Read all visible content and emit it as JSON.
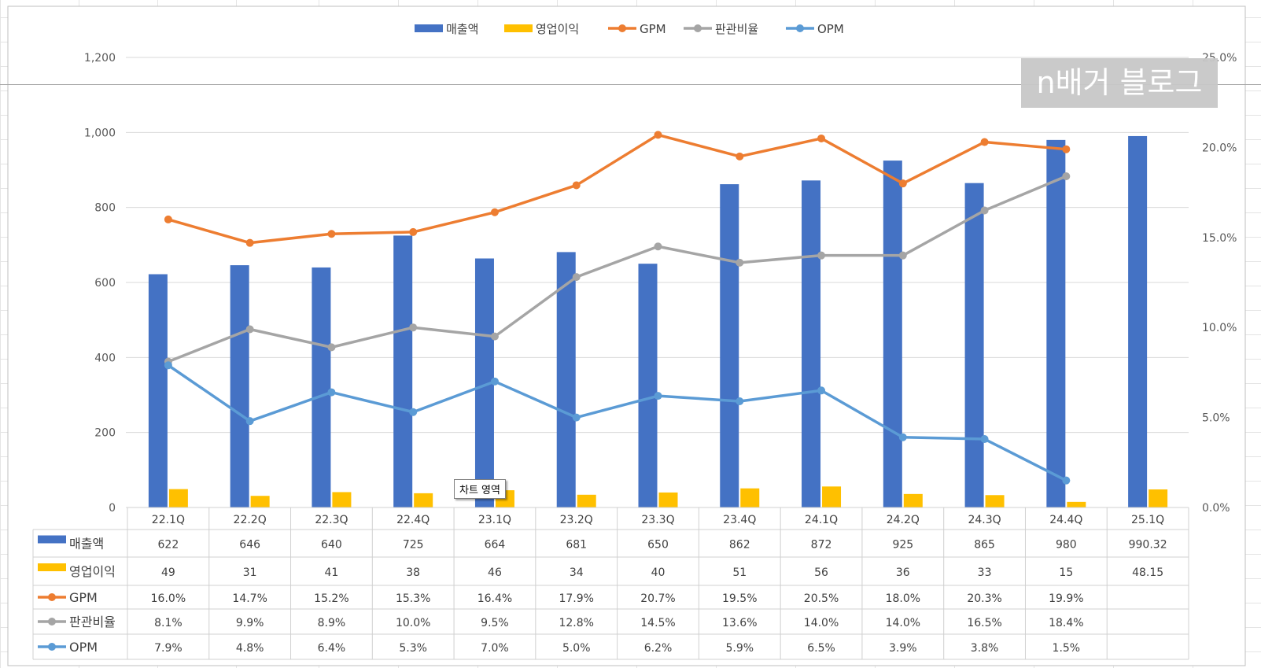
{
  "chart_data": {
    "type": "bar+line",
    "categories": [
      "22.1Q",
      "22.2Q",
      "22.3Q",
      "22.4Q",
      "23.1Q",
      "23.2Q",
      "23.3Q",
      "23.4Q",
      "24.1Q",
      "24.2Q",
      "24.3Q",
      "24.4Q",
      "25.1Q"
    ],
    "bar_series": [
      {
        "name": "매출액",
        "color": "#4472C4",
        "values": [
          622,
          646,
          640,
          725,
          664,
          681,
          650,
          862,
          872,
          925,
          865,
          980,
          990.32
        ],
        "labels": [
          "622",
          "646",
          "640",
          "725",
          "664",
          "681",
          "650",
          "862",
          "872",
          "925",
          "865",
          "980",
          "990.32"
        ]
      },
      {
        "name": "영업이익",
        "color": "#FFC000",
        "values": [
          49,
          31,
          41,
          38,
          46,
          34,
          40,
          51,
          56,
          36,
          33,
          15,
          48.15
        ],
        "labels": [
          "49",
          "31",
          "41",
          "38",
          "46",
          "34",
          "40",
          "51",
          "56",
          "36",
          "33",
          "15",
          "48.15"
        ]
      }
    ],
    "line_series": [
      {
        "name": "GPM",
        "color": "#ED7D31",
        "values": [
          16.0,
          14.7,
          15.2,
          15.3,
          16.4,
          17.9,
          20.7,
          19.5,
          20.5,
          18.0,
          20.3,
          19.9,
          null
        ],
        "labels": [
          "16.0%",
          "14.7%",
          "15.2%",
          "15.3%",
          "16.4%",
          "17.9%",
          "20.7%",
          "19.5%",
          "20.5%",
          "18.0%",
          "20.3%",
          "19.9%",
          ""
        ]
      },
      {
        "name": "판관비율",
        "color": "#A5A5A5",
        "values": [
          8.1,
          9.9,
          8.9,
          10.0,
          9.5,
          12.8,
          14.5,
          13.6,
          14.0,
          14.0,
          16.5,
          18.4,
          null
        ],
        "labels": [
          "8.1%",
          "9.9%",
          "8.9%",
          "10.0%",
          "9.5%",
          "12.8%",
          "14.5%",
          "13.6%",
          "14.0%",
          "14.0%",
          "16.5%",
          "18.4%",
          ""
        ]
      },
      {
        "name": "OPM",
        "color": "#5B9BD5",
        "values": [
          7.9,
          4.8,
          6.4,
          5.3,
          7.0,
          5.0,
          6.2,
          5.9,
          6.5,
          3.9,
          3.8,
          1.5,
          null
        ],
        "labels": [
          "7.9%",
          "4.8%",
          "6.4%",
          "5.3%",
          "7.0%",
          "5.0%",
          "6.2%",
          "5.9%",
          "6.5%",
          "3.9%",
          "3.8%",
          "1.5%",
          ""
        ]
      }
    ],
    "y_left": {
      "min": 0,
      "max": 1200,
      "ticks": [
        0,
        200,
        400,
        600,
        800,
        "1,000",
        "1,200"
      ]
    },
    "y_right": {
      "min": 0,
      "max": 25,
      "ticks": [
        "0.0%",
        "5.0%",
        "10.0%",
        "15.0%",
        "20.0%",
        "25.0%"
      ]
    },
    "legend_position": "top",
    "grid": true
  },
  "watermark": "n배거 블로그",
  "tooltip": "차트 영역"
}
